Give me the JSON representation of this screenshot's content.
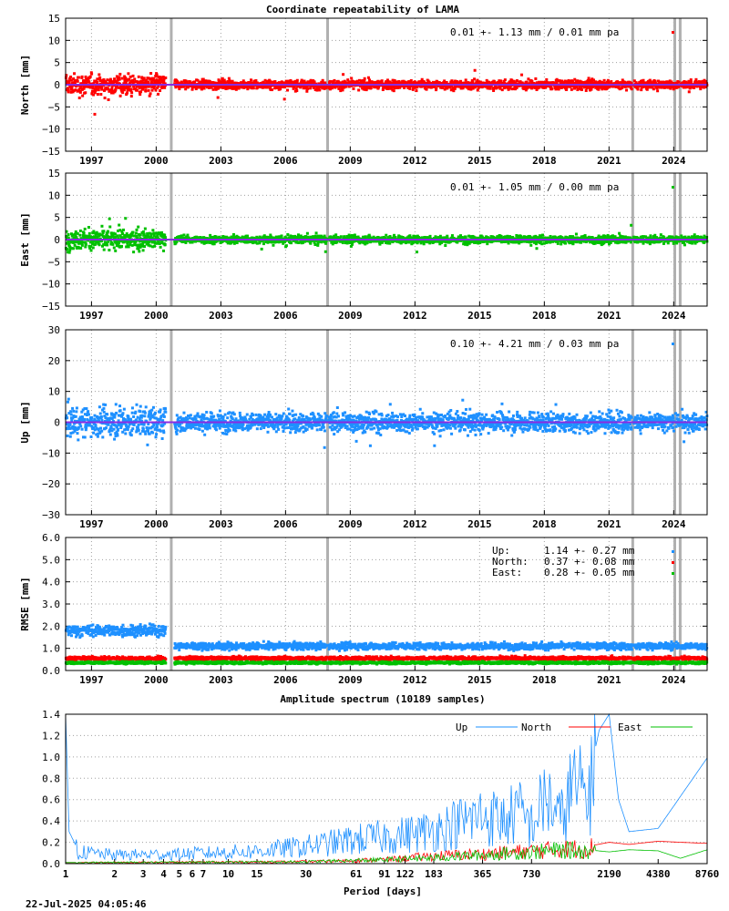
{
  "title": "Coordinate repeatability of LAMA",
  "timestamp": "22-Jul-2025 04:05:46",
  "colors": {
    "north": "#ff0000",
    "east": "#00c000",
    "up": "#1e90ff",
    "trend": "#8a2be2",
    "gap": "#b0b0b0"
  },
  "time_axis": {
    "range": [
      1995.8,
      2025.55
    ],
    "ticks": [
      1997,
      2000,
      2003,
      2006,
      2009,
      2012,
      2015,
      2018,
      2021,
      2024
    ],
    "tick_labels": [
      "1997",
      "2000",
      "2003",
      "2006",
      "2009",
      "2012",
      "2015",
      "2018",
      "2021",
      "2024"
    ]
  },
  "data_gaps": [
    2000.7,
    2007.95,
    2022.1,
    2024.05,
    2024.3
  ],
  "chart_data": [
    {
      "type": "scatter",
      "id": "north",
      "ylabel": "North [mm]",
      "ylim": [
        -15,
        15
      ],
      "yticks": [
        -15,
        -10,
        -5,
        0,
        5,
        10,
        15
      ],
      "ytick_labels": [
        "−15",
        "−10",
        "−5",
        "0",
        "5",
        "10",
        "15"
      ],
      "stats": "0.01 +- 1.13 mm /  0.01 mm pa",
      "color": "#ff0000",
      "series": [
        {
          "rms_by_period": [
            [
              1995.8,
              3.0
            ],
            [
              2000.7,
              1.3
            ],
            [
              2025.55,
              1.3
            ]
          ],
          "trend_mm_per_yr": 0.01
        }
      ]
    },
    {
      "type": "scatter",
      "id": "east",
      "ylabel": "East [mm]",
      "ylim": [
        -15,
        15
      ],
      "yticks": [
        -15,
        -10,
        -5,
        0,
        5,
        10,
        15
      ],
      "ytick_labels": [
        "−15",
        "−10",
        "−5",
        "0",
        "5",
        "10",
        "15"
      ],
      "stats": "0.01 +- 1.05 mm /  0.00 mm pa",
      "color": "#00c000",
      "series": [
        {
          "rms_by_period": [
            [
              1995.8,
              2.8
            ],
            [
              2000.7,
              1.1
            ],
            [
              2025.55,
              1.1
            ]
          ],
          "trend_mm_per_yr": 0.0
        }
      ]
    },
    {
      "type": "scatter",
      "id": "up",
      "ylabel": "Up [mm]",
      "ylim": [
        -30,
        30
      ],
      "yticks": [
        -30,
        -20,
        -10,
        0,
        10,
        20,
        30
      ],
      "ytick_labels": [
        "−30",
        "−20",
        "−10",
        "0",
        "10",
        "20",
        "30"
      ],
      "stats": "0.10 +- 4.21 mm /  0.03 mm pa",
      "color": "#1e90ff",
      "series": [
        {
          "rms_by_period": [
            [
              1995.8,
              6.0
            ],
            [
              2000.7,
              4.0
            ],
            [
              2025.55,
              4.0
            ]
          ],
          "trend_mm_per_yr": 0.03
        }
      ]
    },
    {
      "type": "scatter",
      "id": "rmse",
      "ylabel": "RMSE [mm]",
      "ylim": [
        0,
        6
      ],
      "yticks": [
        0,
        1,
        2,
        3,
        4,
        5,
        6
      ],
      "ytick_labels": [
        "0.0",
        "1.0",
        "2.0",
        "3.0",
        "4.0",
        "5.0",
        "6.0"
      ],
      "legend": [
        {
          "label": "Up:",
          "value": "1.14 +- 0.27 mm",
          "color": "#1e90ff"
        },
        {
          "label": "North:",
          "value": "0.37 +- 0.08 mm",
          "color": "#ff0000"
        },
        {
          "label": "East:",
          "value": "0.28 +- 0.05 mm",
          "color": "#00c000"
        }
      ],
      "series": [
        {
          "name": "Up",
          "mean_by_period": [
            [
              1995.8,
              1.8
            ],
            [
              2000.7,
              1.1
            ],
            [
              2025.55,
              1.0
            ]
          ]
        },
        {
          "name": "North",
          "mean_by_period": [
            [
              1995.8,
              0.55
            ],
            [
              2025.55,
              0.37
            ]
          ]
        },
        {
          "name": "East",
          "mean_by_period": [
            [
              1995.8,
              0.35
            ],
            [
              2025.55,
              0.28
            ]
          ]
        }
      ]
    },
    {
      "type": "line",
      "id": "spectrum",
      "title": "Amplitude spectrum (10189 samples)",
      "xlabel": "Period [days]",
      "xscale": "log",
      "xlim": [
        1,
        8760
      ],
      "xticks": [
        1,
        2,
        3,
        4,
        5,
        6,
        7,
        10,
        15,
        30,
        61,
        91,
        122,
        183,
        365,
        730,
        2190,
        4380,
        8760
      ],
      "xtick_labels": [
        "1",
        "2",
        "3",
        "4",
        "5",
        "6",
        "7",
        "10",
        "15",
        "30",
        "61",
        "91",
        "122",
        "183",
        "365",
        "730",
        "2190",
        "4380",
        "8760"
      ],
      "ylim": [
        0,
        1.4
      ],
      "yticks": [
        0,
        0.2,
        0.4,
        0.6,
        0.8,
        1.0,
        1.2,
        1.4
      ],
      "ytick_labels": [
        "0.0",
        "0.2",
        "0.4",
        "0.6",
        "0.8",
        "1.0",
        "1.2",
        "1.4"
      ],
      "legend_position": "top",
      "series": [
        {
          "name": "Up",
          "color": "#1e90ff",
          "points": [
            [
              1.0,
              1.4
            ],
            [
              1.05,
              0.3
            ],
            [
              1.2,
              0.12
            ],
            [
              2,
              0.09
            ],
            [
              5,
              0.1
            ],
            [
              15,
              0.13
            ],
            [
              30,
              0.18
            ],
            [
              61,
              0.25
            ],
            [
              122,
              0.3
            ],
            [
              183,
              0.35
            ],
            [
              300,
              0.45
            ],
            [
              365,
              0.5
            ],
            [
              500,
              0.45
            ],
            [
              600,
              0.55
            ],
            [
              730,
              0.4
            ],
            [
              900,
              0.7
            ],
            [
              1100,
              0.45
            ],
            [
              1300,
              0.8
            ],
            [
              1600,
              0.7
            ],
            [
              1900,
              1.25
            ],
            [
              2190,
              1.4
            ],
            [
              2500,
              0.6
            ],
            [
              2900,
              0.3
            ],
            [
              4380,
              0.33
            ],
            [
              8760,
              0.99
            ]
          ]
        },
        {
          "name": "North",
          "color": "#ff0000",
          "points": [
            [
              1,
              0.01
            ],
            [
              30,
              0.02
            ],
            [
              91,
              0.04
            ],
            [
              183,
              0.08
            ],
            [
              365,
              0.1
            ],
            [
              730,
              0.13
            ],
            [
              1100,
              0.15
            ],
            [
              1600,
              0.16
            ],
            [
              2190,
              0.2
            ],
            [
              2900,
              0.18
            ],
            [
              4380,
              0.21
            ],
            [
              6000,
              0.2
            ],
            [
              8760,
              0.19
            ]
          ]
        },
        {
          "name": "East",
          "color": "#00c000",
          "points": [
            [
              1,
              0.01
            ],
            [
              30,
              0.02
            ],
            [
              91,
              0.04
            ],
            [
              183,
              0.06
            ],
            [
              365,
              0.09
            ],
            [
              730,
              0.12
            ],
            [
              1100,
              0.14
            ],
            [
              1600,
              0.13
            ],
            [
              2190,
              0.11
            ],
            [
              2900,
              0.13
            ],
            [
              4380,
              0.12
            ],
            [
              6000,
              0.05
            ],
            [
              8760,
              0.13
            ]
          ]
        }
      ]
    }
  ]
}
